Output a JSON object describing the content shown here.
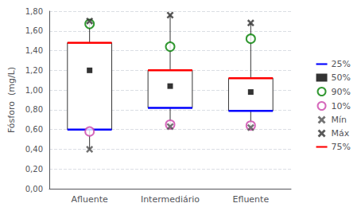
{
  "chart_data": {
    "type": "box",
    "ylabel": "Fósforo  (mg/L)",
    "categories": [
      "Afluente",
      "Intermediário",
      "Efluente"
    ],
    "ylim": [
      0.0,
      1.8
    ],
    "yticks": [
      {
        "value": 0.0,
        "label": "0,00"
      },
      {
        "value": 0.2,
        "label": "0,20"
      },
      {
        "value": 0.4,
        "label": "0,40"
      },
      {
        "value": 0.6,
        "label": "0,60"
      },
      {
        "value": 0.8,
        "label": "0,80"
      },
      {
        "value": 1.0,
        "label": "1,00"
      },
      {
        "value": 1.2,
        "label": "1,20"
      },
      {
        "value": 1.4,
        "label": "1,40"
      },
      {
        "value": 1.6,
        "label": "1,60"
      },
      {
        "value": 1.8,
        "label": "1,80"
      }
    ],
    "grid": true,
    "legend": "right",
    "series": [
      {
        "name": "25%",
        "color": "blue",
        "marker": "line",
        "values": [
          0.6,
          0.82,
          0.79
        ]
      },
      {
        "name": "50%",
        "color": "black",
        "marker": "square",
        "values": [
          1.2,
          1.04,
          0.98
        ]
      },
      {
        "name": "90%",
        "color": "green",
        "marker": "circle",
        "values": [
          1.67,
          1.44,
          1.52
        ]
      },
      {
        "name": "10%",
        "color": "#cc44aa",
        "marker": "circle",
        "values": [
          0.58,
          0.65,
          0.64
        ]
      },
      {
        "name": "Mín",
        "color": "#505050",
        "marker": "x",
        "values": [
          0.4,
          0.63,
          0.62
        ]
      },
      {
        "name": "Máx",
        "color": "#303030",
        "marker": "x",
        "values": [
          1.7,
          1.76,
          1.68
        ]
      },
      {
        "name": "75%",
        "color": "red",
        "marker": "line",
        "values": [
          1.48,
          1.2,
          1.12
        ]
      }
    ]
  }
}
